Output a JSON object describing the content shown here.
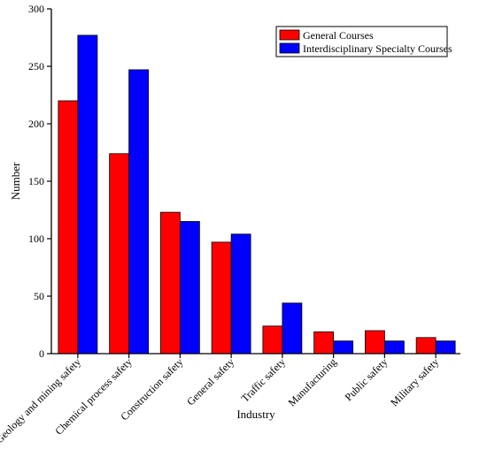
{
  "chart_data": {
    "type": "bar",
    "xlabel": "Industry",
    "ylabel": "Number",
    "ylim": [
      0,
      300
    ],
    "yticks": [
      0,
      50,
      100,
      150,
      200,
      250,
      300
    ],
    "categories": [
      "Geology and mining safety",
      "Chemical process safety",
      "Construction safety",
      "General safety",
      "Traffic safety",
      "Manufacturing",
      "Public safety",
      "Military safety"
    ],
    "series": [
      {
        "name": "General Courses",
        "color": "#ff0000",
        "values": [
          220,
          174,
          123,
          97,
          24,
          19,
          20,
          14
        ]
      },
      {
        "name": "Interdisciplinary Specialty Courses",
        "color": "#0000ff",
        "values": [
          277,
          247,
          115,
          104,
          44,
          11,
          11,
          11
        ]
      }
    ],
    "legend_position": "top-right",
    "grid": false
  }
}
